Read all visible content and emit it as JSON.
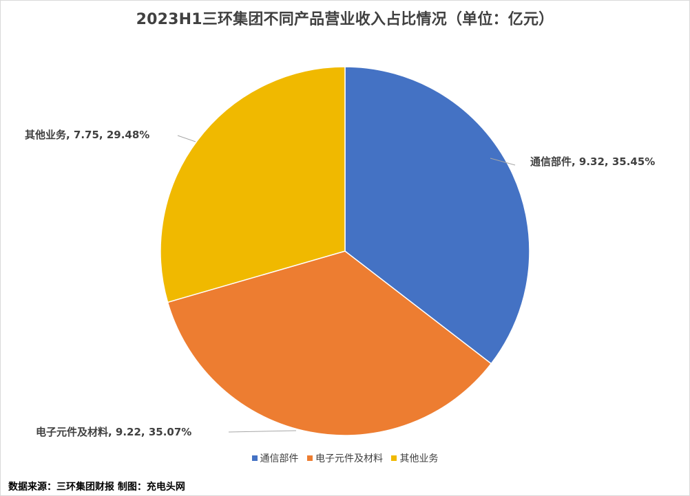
{
  "chart_data": {
    "type": "pie",
    "title": "2023H1三环集团不同产品营业收入占比情况（单位：亿元）",
    "unit": "亿元",
    "legend_position": "bottom",
    "slices": [
      {
        "name": "通信部件",
        "value": 9.32,
        "percent": 35.45,
        "label": "通信部件, 9.32, 35.45%",
        "color": "#4472C4"
      },
      {
        "name": "电子元件及材料",
        "value": 9.22,
        "percent": 35.07,
        "label": "电子元件及材料, 9.22, 35.07%",
        "color": "#ED7D31"
      },
      {
        "name": "其他业务",
        "value": 7.75,
        "percent": 29.48,
        "label": "其他业务, 7.75, 29.48%",
        "color": "#F0B900"
      }
    ]
  },
  "source_note": "数据来源：三环集团财报  制图：充电头网"
}
